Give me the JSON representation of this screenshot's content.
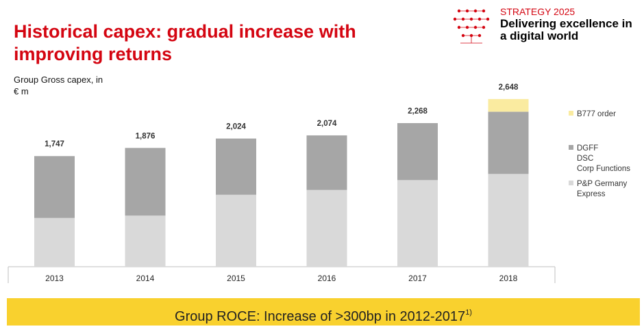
{
  "header": {
    "title": "Historical capex: gradual increase with improving returns",
    "strategy": "STRATEGY 2025",
    "tagline": "Delivering excellence in a digital world"
  },
  "colors": {
    "brand_red": "#d40511",
    "series_bottom": "#d9d9d9",
    "series_middle": "#a6a6a6",
    "series_top": "#faeba0",
    "banner": "#f9d12e"
  },
  "chart_data": {
    "type": "bar",
    "stacked": true,
    "ylabel": "Group Gross capex, in € m",
    "categories": [
      "2013",
      "2014",
      "2015",
      "2016",
      "2017",
      "2018"
    ],
    "totals": [
      "1,747",
      "1,876",
      "2,024",
      "2,074",
      "2,268",
      "2,648"
    ],
    "total_values": [
      1747,
      1876,
      2024,
      2074,
      2268,
      2648
    ],
    "series": [
      {
        "name": "P&P Germany Express",
        "legend_lines": [
          "P&P Germany",
          "Express"
        ],
        "values": [
          770,
          807,
          1136,
          1212,
          1368,
          1465
        ]
      },
      {
        "name": "DGFF DSC Corp Functions",
        "legend_lines": [
          "DGFF",
          "DSC",
          "Corp Functions"
        ],
        "values": [
          977,
          1069,
          888,
          862,
          900,
          983
        ]
      },
      {
        "name": "B777 order",
        "legend_lines": [
          "B777 order"
        ],
        "values": [
          0,
          0,
          0,
          0,
          0,
          200
        ]
      }
    ],
    "ylim": [
      0,
      2700
    ],
    "grid": false,
    "legend_position": "right"
  },
  "banner": {
    "text": "Group ROCE: Increase of >300bp in 2012-2017",
    "footnote": "1)"
  }
}
